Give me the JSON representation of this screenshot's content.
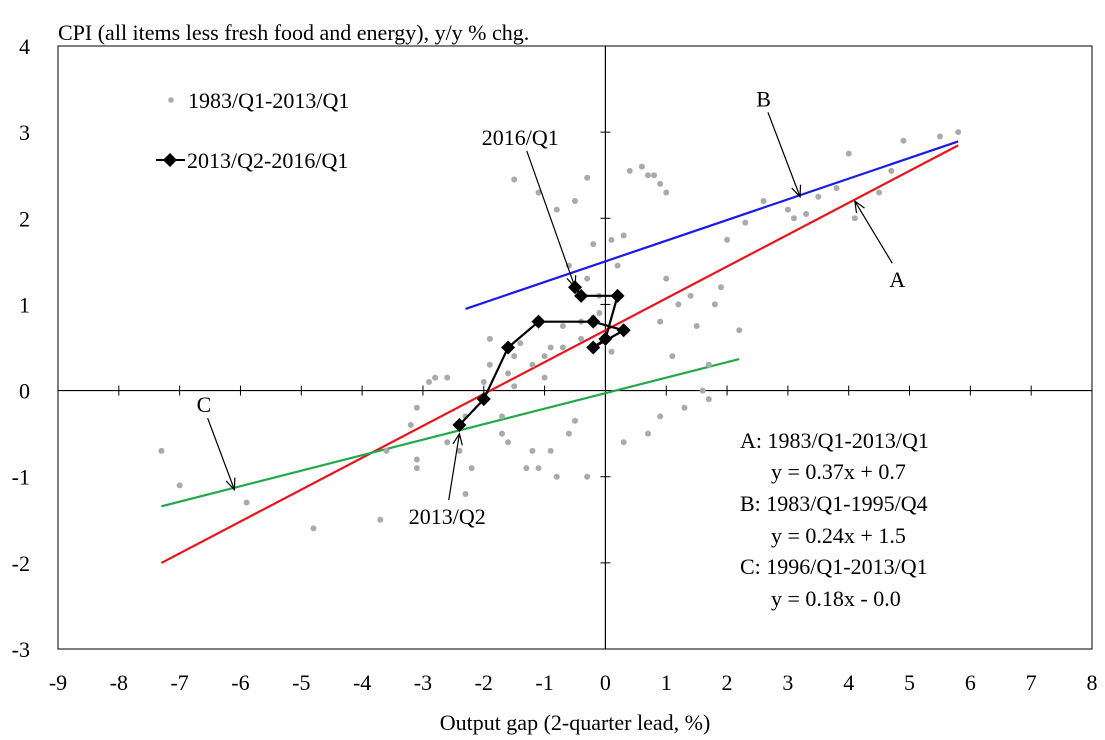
{
  "chart_data": {
    "type": "scatter",
    "title": "CPI (all items less fresh food and energy), y/y % chg.",
    "xlabel": "Output gap (2-quarter lead, %)",
    "ylabel": "",
    "xlim": [
      -9,
      8
    ],
    "ylim": [
      -3,
      4
    ],
    "x_ticks": [
      "-9",
      "-8",
      "-7",
      "-6",
      "-5",
      "-4",
      "-3",
      "-2",
      "-1",
      "0",
      "1",
      "2",
      "3",
      "4",
      "5",
      "6",
      "7",
      "8"
    ],
    "y_ticks": [
      "4",
      "3",
      "2",
      "1",
      "0",
      "-1",
      "-2",
      "-3"
    ],
    "grid": false,
    "legend_position": "top-left",
    "series": [
      {
        "name": "1983/Q1-2013/Q1",
        "kind": "points",
        "color": "#aaaaaa",
        "points": [
          [
            -7.3,
            -0.7
          ],
          [
            -7.0,
            -1.1
          ],
          [
            -5.9,
            -1.3
          ],
          [
            -4.8,
            -1.6
          ],
          [
            -3.7,
            -1.5
          ],
          [
            -3.6,
            -0.7
          ],
          [
            -3.2,
            -0.4
          ],
          [
            -3.1,
            -0.2
          ],
          [
            -3.1,
            -0.8
          ],
          [
            -3.1,
            -0.9
          ],
          [
            -2.9,
            0.1
          ],
          [
            -2.8,
            0.15
          ],
          [
            -2.6,
            0.15
          ],
          [
            -2.6,
            -0.6
          ],
          [
            -2.4,
            -0.7
          ],
          [
            -2.3,
            -1.2
          ],
          [
            -2.3,
            -0.3
          ],
          [
            -2.2,
            -0.9
          ],
          [
            -2.0,
            0.1
          ],
          [
            -1.9,
            0.3
          ],
          [
            -1.9,
            0.6
          ],
          [
            -1.7,
            -0.5
          ],
          [
            -1.7,
            -0.3
          ],
          [
            -1.6,
            -0.6
          ],
          [
            -1.6,
            0.2
          ],
          [
            -1.5,
            0.4
          ],
          [
            -1.5,
            0.05
          ],
          [
            -1.4,
            0.55
          ],
          [
            -1.5,
            2.45
          ],
          [
            -1.3,
            -0.9
          ],
          [
            -1.2,
            0.3
          ],
          [
            -1.1,
            2.3
          ],
          [
            -1.1,
            -0.9
          ],
          [
            -1.0,
            0.4
          ],
          [
            -1.0,
            0.15
          ],
          [
            -0.9,
            0.5
          ],
          [
            -0.9,
            -0.7
          ],
          [
            -0.8,
            2.1
          ],
          [
            -0.8,
            -1.0
          ],
          [
            -0.7,
            0.75
          ],
          [
            -0.7,
            0.5
          ],
          [
            -0.6,
            1.45
          ],
          [
            -0.6,
            -0.5
          ],
          [
            -0.5,
            2.2
          ],
          [
            -0.5,
            -0.35
          ],
          [
            -0.4,
            0.8
          ],
          [
            -0.4,
            0.6
          ],
          [
            -0.3,
            1.3
          ],
          [
            -0.3,
            2.47
          ],
          [
            -0.2,
            0.85
          ],
          [
            -0.2,
            1.7
          ],
          [
            -0.1,
            0.9
          ],
          [
            -0.1,
            1.1
          ],
          [
            -0.3,
            -1.0
          ],
          [
            0.1,
            0.45
          ],
          [
            0.1,
            1.75
          ],
          [
            0.2,
            1.45
          ],
          [
            0.3,
            -0.6
          ],
          [
            0.3,
            1.8
          ],
          [
            0.4,
            2.55
          ],
          [
            0.6,
            2.6
          ],
          [
            0.7,
            2.5
          ],
          [
            0.8,
            2.5
          ],
          [
            0.9,
            2.4
          ],
          [
            1.0,
            2.3
          ],
          [
            0.9,
            0.8
          ],
          [
            1.0,
            1.3
          ],
          [
            1.1,
            0.4
          ],
          [
            1.2,
            1.0
          ],
          [
            1.4,
            1.1
          ],
          [
            1.5,
            0.75
          ],
          [
            1.6,
            0.0
          ],
          [
            1.7,
            0.3
          ],
          [
            1.7,
            -0.1
          ],
          [
            1.8,
            1.0
          ],
          [
            1.9,
            1.2
          ],
          [
            2.0,
            1.75
          ],
          [
            2.2,
            0.7
          ],
          [
            2.3,
            1.95
          ],
          [
            2.6,
            2.2
          ],
          [
            3.0,
            2.1
          ],
          [
            3.1,
            2.0
          ],
          [
            3.3,
            2.05
          ],
          [
            3.5,
            2.25
          ],
          [
            3.8,
            2.35
          ],
          [
            4.0,
            2.75
          ],
          [
            4.1,
            2.0
          ],
          [
            4.5,
            2.3
          ],
          [
            4.7,
            2.55
          ],
          [
            4.9,
            2.9
          ],
          [
            5.5,
            2.95
          ],
          [
            5.8,
            3.0
          ],
          [
            0.9,
            -0.3
          ],
          [
            1.3,
            -0.2
          ],
          [
            0.7,
            -0.5
          ],
          [
            -1.2,
            -0.7
          ]
        ]
      },
      {
        "name": "2013/Q2-2016/Q1",
        "kind": "line-markers",
        "color": "#000000",
        "points": [
          [
            -2.4,
            -0.4
          ],
          [
            -2.0,
            -0.1
          ],
          [
            -1.6,
            0.5
          ],
          [
            -1.1,
            0.8
          ],
          [
            -0.2,
            0.8
          ],
          [
            0.3,
            0.7
          ],
          [
            -0.2,
            0.5
          ],
          [
            0.0,
            0.6
          ],
          [
            0.2,
            1.1
          ],
          [
            -0.4,
            1.1
          ],
          [
            -0.5,
            1.2
          ]
        ]
      }
    ],
    "regression_lines": [
      {
        "id": "A",
        "color": "#e8141c",
        "x": [
          -7.3,
          5.8
        ],
        "slope": 0.37,
        "intercept": 0.7
      },
      {
        "id": "B",
        "color": "#1a1ae6",
        "x": [
          -2.3,
          5.8
        ],
        "slope": 0.24,
        "intercept": 1.5
      },
      {
        "id": "C",
        "color": "#22a84a",
        "x": [
          -7.3,
          2.2
        ],
        "slope": 0.18,
        "intercept": -0.03
      }
    ],
    "annotations": [
      {
        "text": "A",
        "text_at": [
          4.8,
          1.2
        ],
        "arrow_to": [
          4.1,
          2.2
        ]
      },
      {
        "text": "B",
        "text_at": [
          2.6,
          3.3
        ],
        "arrow_to": [
          3.2,
          2.25
        ]
      },
      {
        "text": "C",
        "text_at": [
          -6.6,
          -0.25
        ],
        "arrow_to": [
          -6.1,
          -1.15
        ]
      },
      {
        "text": "2016/Q1",
        "text_at": [
          -1.4,
          2.85
        ],
        "arrow_to": [
          -0.5,
          1.2
        ]
      },
      {
        "text": "2013/Q2",
        "text_at": [
          -2.6,
          -1.55
        ],
        "arrow_to": [
          -2.4,
          -0.5
        ]
      }
    ],
    "equation_box": [
      "A: 1983/Q1-2013/Q1",
      "y = 0.37x + 0.7",
      "B: 1983/Q1-1995/Q4",
      "y = 0.24x + 1.5",
      "C: 1996/Q1-2013/Q1",
      "y = 0.18x - 0.0"
    ]
  }
}
